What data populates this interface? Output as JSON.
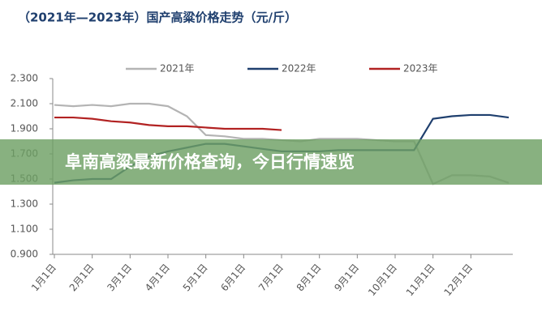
{
  "chart_data": {
    "type": "line",
    "title": "（2021年—2023年）国产高粱价格走势（元/斤）",
    "categories": [
      "1月1日",
      null,
      "2月1日",
      null,
      "3月1日",
      null,
      "4月1日",
      null,
      "5月1日",
      null,
      "6月1日",
      null,
      "7月1日",
      null,
      "8月1日",
      null,
      "9月1日",
      null,
      "10月1日",
      null,
      "11月1日",
      null,
      "12月1日",
      null,
      null
    ],
    "series": [
      {
        "name": "2021年",
        "color": "#b4b4b4",
        "values": [
          2.09,
          2.08,
          2.09,
          2.08,
          2.1,
          2.1,
          2.08,
          2.0,
          1.85,
          1.84,
          1.82,
          1.82,
          1.81,
          1.8,
          1.82,
          1.82,
          1.82,
          1.81,
          1.8,
          1.8,
          1.46,
          1.53,
          1.53,
          1.52,
          1.47
        ]
      },
      {
        "name": "2022年",
        "color": "#1f3f6e",
        "values": [
          1.47,
          1.49,
          1.5,
          1.5,
          1.6,
          1.68,
          1.72,
          1.75,
          1.78,
          1.78,
          1.76,
          1.74,
          1.72,
          1.72,
          1.72,
          1.73,
          1.73,
          1.73,
          1.73,
          1.73,
          1.98,
          2.0,
          2.01,
          2.01,
          1.99
        ]
      },
      {
        "name": "2023年",
        "color": "#b22222",
        "values": [
          1.99,
          1.99,
          1.98,
          1.96,
          1.95,
          1.93,
          1.92,
          1.92,
          1.91,
          1.9,
          1.9,
          1.9,
          1.89,
          null,
          null,
          null,
          null,
          null,
          null,
          null,
          null,
          null,
          null,
          null,
          null
        ]
      }
    ],
    "ylim": [
      0.9,
      2.3
    ],
    "yticks": [
      {
        "value": 0.9,
        "label": "0.900"
      },
      {
        "value": 1.1,
        "label": "1.100"
      },
      {
        "value": 1.3,
        "label": "1.300"
      },
      {
        "value": 1.5,
        "label": "1.500"
      },
      {
        "value": 1.7,
        "label": "1.700"
      },
      {
        "value": 1.9,
        "label": "1.900"
      },
      {
        "value": 2.1,
        "label": "2.100"
      },
      {
        "value": 2.3,
        "label": "2.300"
      }
    ],
    "legend": "top"
  },
  "overlay_title": "阜南高粱最新价格查询，今日行情速览"
}
